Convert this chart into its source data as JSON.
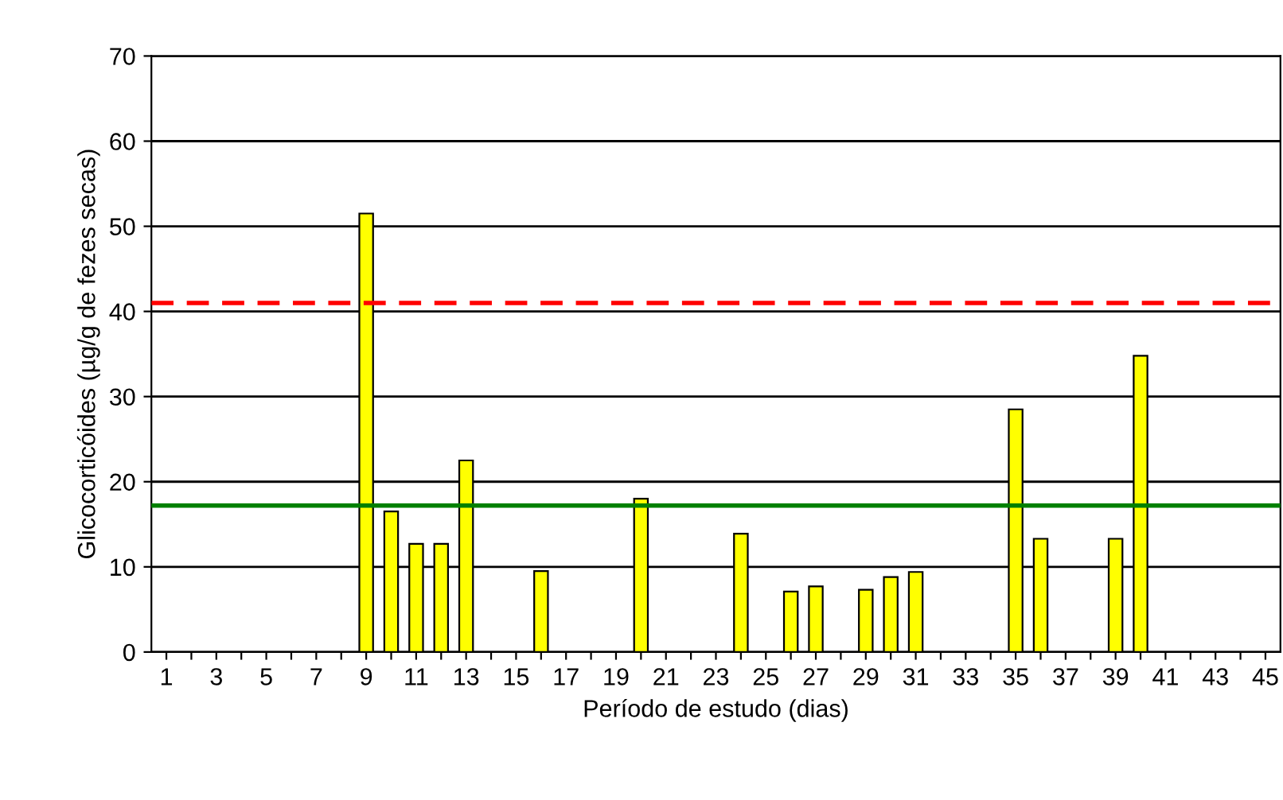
{
  "chart_data": {
    "type": "bar",
    "xlabel": "Período de estudo (dias)",
    "ylabel": "Glicocorticóides (µg/g de fezes secas)",
    "categories": [
      "1",
      null,
      "3",
      null,
      "5",
      null,
      "7",
      null,
      "9",
      null,
      "11",
      null,
      "13",
      null,
      "15",
      null,
      "17",
      null,
      "19",
      null,
      "21",
      null,
      "23",
      null,
      "25",
      null,
      "27",
      null,
      "29",
      null,
      "31",
      null,
      "33",
      null,
      "35",
      null,
      "37",
      null,
      "39",
      null,
      "41",
      null,
      "43",
      null,
      "45"
    ],
    "values": [
      null,
      null,
      null,
      null,
      null,
      null,
      null,
      null,
      51.5,
      16.5,
      12.7,
      12.7,
      22.5,
      null,
      null,
      9.5,
      null,
      null,
      null,
      18,
      null,
      null,
      null,
      13.9,
      null,
      7.1,
      7.7,
      null,
      7.3,
      8.8,
      9.4,
      null,
      null,
      null,
      28.5,
      13.3,
      null,
      null,
      13.3,
      34.8,
      null,
      null,
      null,
      null,
      null
    ],
    "color": "#ffff00",
    "ylim": [
      0,
      70
    ],
    "yticks": [
      0,
      10,
      20,
      30,
      40,
      50,
      60,
      70
    ],
    "grid": "y",
    "ref_lines": [
      {
        "axis": "y",
        "value": 41,
        "color": "#ff0000",
        "line_style": "dashed"
      },
      {
        "axis": "y",
        "value": 17.2,
        "color": "#008000",
        "line_style": "solid"
      }
    ]
  }
}
